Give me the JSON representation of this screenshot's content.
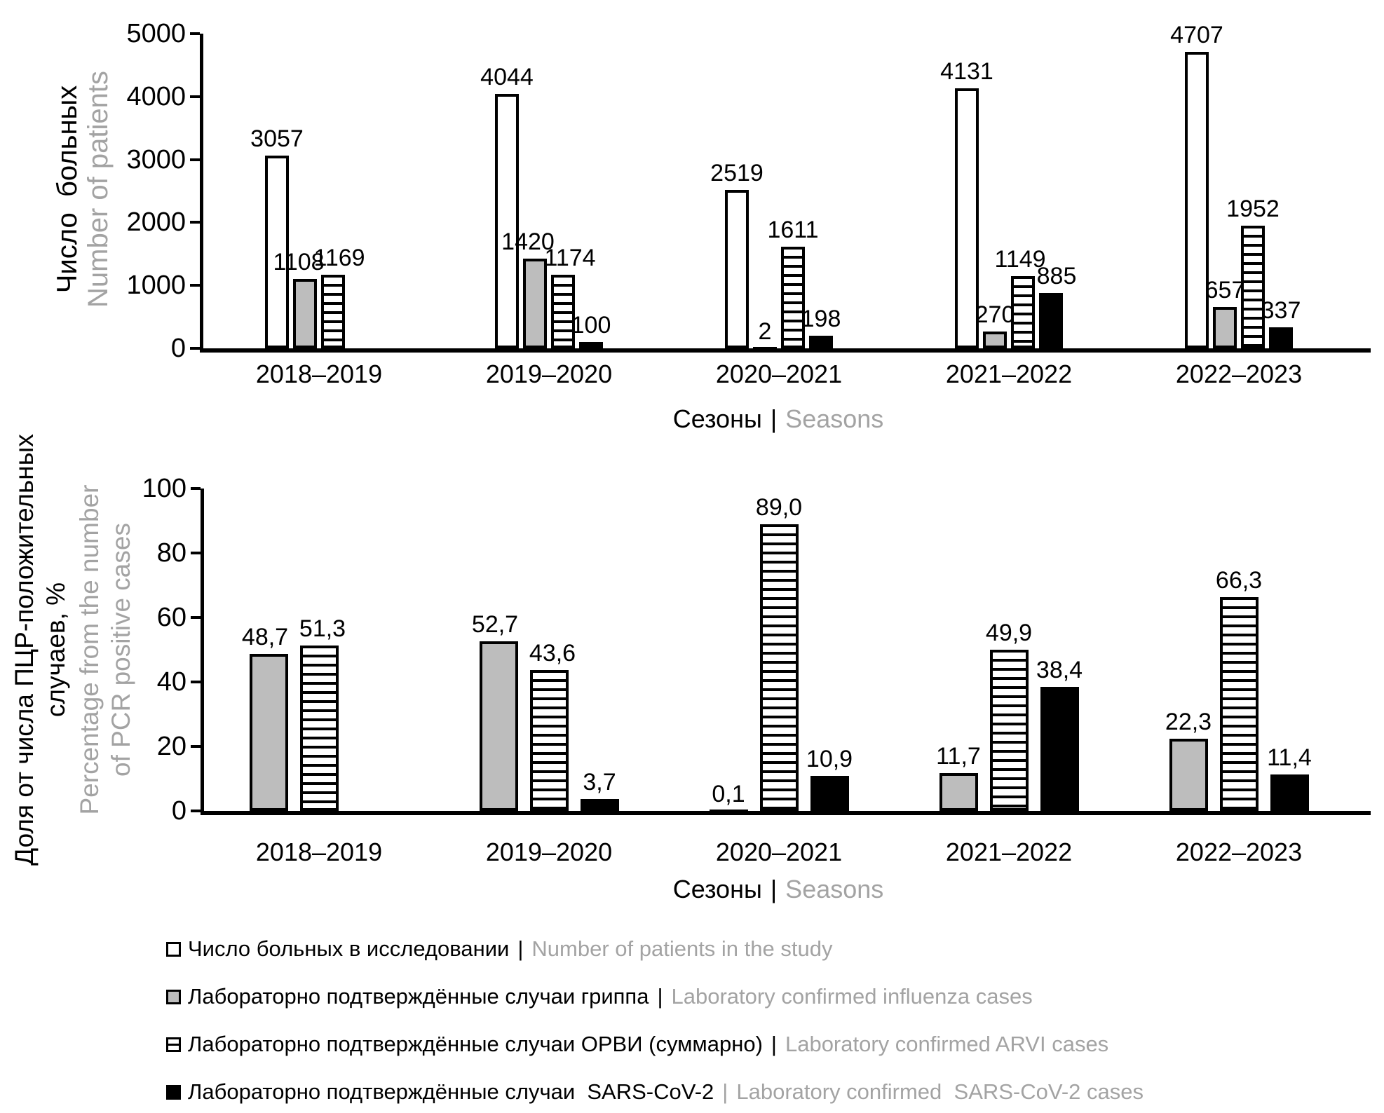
{
  "figure": {
    "background": "#ffffff",
    "black": "#000000",
    "gray_text": "#a3a3a3",
    "gray_bar": "#bdbdbd",
    "separator": "|"
  },
  "chart_data": [
    {
      "type": "bar",
      "ylabel_ru_lines": [
        "Число  больных"
      ],
      "ylabel_en_lines": [
        "Number of patients"
      ],
      "xlabel_ru": "Сезоны",
      "xlabel_en": "Seasons",
      "categories": [
        "2018–2019",
        "2019–2020",
        "2020–2021",
        "2021–2022",
        "2022–2023"
      ],
      "ylim": [
        0,
        5000
      ],
      "yticks": [
        0,
        1000,
        2000,
        3000,
        4000,
        5000
      ],
      "ytick_labels": [
        "0",
        "1000",
        "2000",
        "3000",
        "4000",
        "5000"
      ],
      "grid": false,
      "legend_position": "bottom",
      "series": [
        {
          "name": "Number of patients in the study",
          "style": "white",
          "values": [
            3057,
            4044,
            2519,
            4131,
            4707
          ],
          "labels": [
            "3057",
            "4044",
            "2519",
            "4131",
            "4707"
          ]
        },
        {
          "name": "Laboratory confirmed influenza cases",
          "style": "gray",
          "values": [
            1108,
            1420,
            2,
            270,
            657
          ],
          "labels": [
            "1108",
            "1420",
            "2",
            "270",
            "657"
          ]
        },
        {
          "name": "Laboratory confirmed ARVI cases",
          "style": "striped",
          "values": [
            1169,
            1174,
            1611,
            1149,
            1952
          ],
          "labels": [
            "1169",
            "1174",
            "1611",
            "1149",
            "1952"
          ]
        },
        {
          "name": "Laboratory confirmed SARS-CoV-2 cases",
          "style": "black",
          "values": [
            null,
            100,
            198,
            885,
            337
          ],
          "labels": [
            "",
            "100",
            "198",
            "885",
            "337"
          ]
        }
      ]
    },
    {
      "type": "bar",
      "ylabel_ru_lines": [
        "Доля от числа ПЦР-положительных",
        "случаев, %"
      ],
      "ylabel_en_lines": [
        "Percentage from the number",
        "of PCR positive cases"
      ],
      "xlabel_ru": "Сезоны",
      "xlabel_en": "Seasons",
      "categories": [
        "2018–2019",
        "2019–2020",
        "2020–2021",
        "2021–2022",
        "2022–2023"
      ],
      "ylim": [
        0,
        100
      ],
      "yticks": [
        0,
        20,
        40,
        60,
        80,
        100
      ],
      "ytick_labels": [
        "0",
        "20",
        "40",
        "60",
        "80",
        "100"
      ],
      "grid": false,
      "legend_position": "bottom",
      "series": [
        {
          "name": "Laboratory confirmed influenza cases",
          "style": "gray",
          "values": [
            48.7,
            52.7,
            0.1,
            11.7,
            22.3
          ],
          "labels": [
            "48,7",
            "52,7",
            "0,1",
            "11,7",
            "22,3"
          ]
        },
        {
          "name": "Laboratory confirmed ARVI cases",
          "style": "striped",
          "values": [
            51.3,
            43.6,
            89.0,
            49.9,
            66.3
          ],
          "labels": [
            "51,3",
            "43,6",
            "89,0",
            "49,9",
            "66,3"
          ]
        },
        {
          "name": "Laboratory confirmed SARS-CoV-2 cases",
          "style": "black",
          "values": [
            null,
            3.7,
            10.9,
            38.4,
            11.4
          ],
          "labels": [
            "",
            "3,7",
            "10,9",
            "38,4",
            "11,4"
          ]
        }
      ]
    }
  ],
  "legend": {
    "items": [
      {
        "style": "white",
        "ru": "Число больных в исследовании",
        "en": "Number of patients in the study",
        "pipe": "|",
        "pipe_color": "#000000"
      },
      {
        "style": "gray",
        "ru": "Лабораторно подтверждённые случаи гриппа",
        "en": "Laboratory confirmed influenza cases",
        "pipe": "|",
        "pipe_color": "#000000"
      },
      {
        "style": "striped",
        "ru": "Лабораторно подтверждённые случаи ОРВИ (суммарно)",
        "en": "Laboratory confirmed ARVI cases",
        "pipe": "|",
        "pipe_color": "#000000"
      },
      {
        "style": "black",
        "ru": "Лабораторно подтверждённые случаи  SARS-CoV-2",
        "en": "Laboratory confirmed  SARS-CoV-2 cases",
        "pipe": "|",
        "pipe_color": "#a3a3a3"
      }
    ]
  }
}
